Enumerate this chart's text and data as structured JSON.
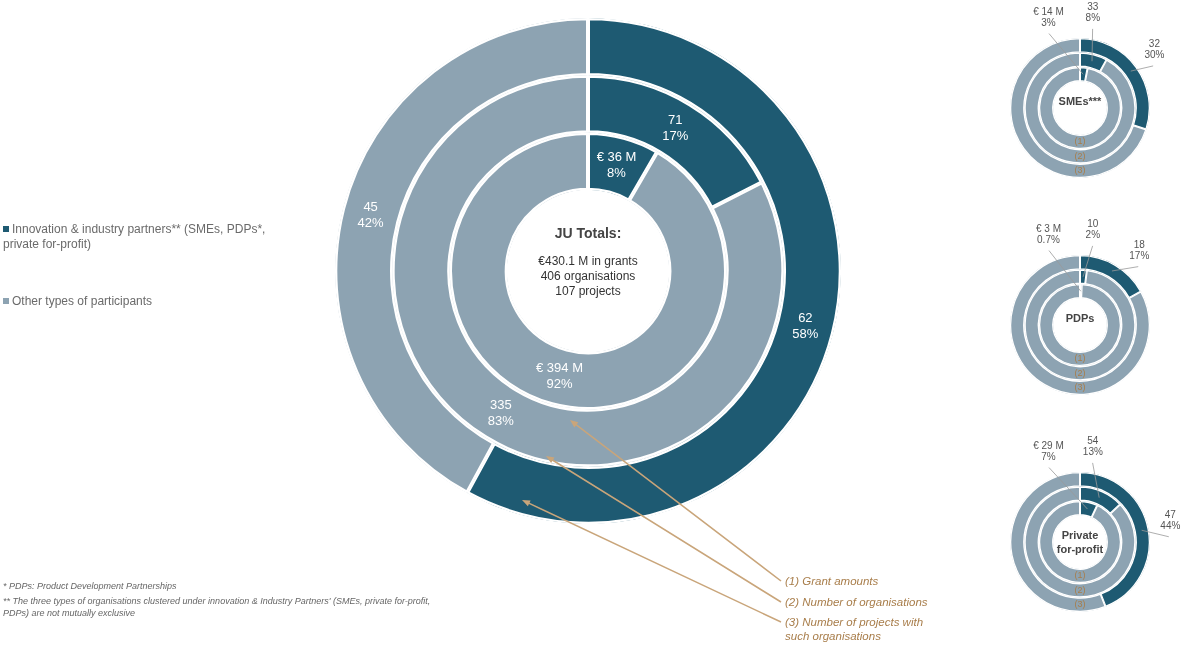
{
  "chart_data": [
    {
      "type": "donut",
      "title": "JU Totals:",
      "subtitle": "€430.1 M in grants\n406 organisations\n107 projects",
      "categories": [
        "Innovation & industry partners** (SMEs, PDPs*, private for-profit)",
        "Other types of participants"
      ],
      "colors": [
        "#1e5a72",
        "#8da3b2"
      ],
      "legend": "left",
      "series": [
        {
          "values": [
            36,
            394
          ],
          "value_labels": [
            "€ 36 M\n8%",
            "€ 394 M\n92%"
          ]
        },
        {
          "values": [
            71,
            335
          ],
          "value_labels": [
            "71\n17%",
            "335\n83%"
          ]
        },
        {
          "values": [
            62,
            45
          ],
          "value_labels": [
            "62\n58%",
            "45\n42%"
          ]
        }
      ],
      "annotations": [
        "(1) Grant amounts",
        "(2) Number of organisations",
        "(3) Number of projects with such organisations",
        "* PDPs: Product Development Partnerships",
        "** The three types of organisations clustered under innovation & Industry Partners' (SMEs, private for-profit, PDPs) are not mutually exclusive"
      ]
    },
    {
      "type": "donut",
      "title": "SMEs***",
      "categories": [
        null,
        null
      ],
      "colors": [
        "#1e5a72",
        "#8da3b2"
      ],
      "series": [
        {
          "values": [
            3,
            97
          ],
          "value_labels": [
            "€ 14 M\n3%",
            null
          ]
        },
        {
          "values": [
            8,
            92
          ],
          "value_labels": [
            "33\n8%",
            null
          ]
        },
        {
          "values": [
            30,
            70
          ],
          "value_labels": [
            "32\n30%",
            null
          ]
        }
      ],
      "annotations": [
        "(1)",
        "(2)",
        "(3)"
      ]
    },
    {
      "type": "donut",
      "title": "PDPs",
      "categories": [
        null,
        null
      ],
      "colors": [
        "#1e5a72",
        "#8da3b2"
      ],
      "series": [
        {
          "values": [
            0.7,
            99.3
          ],
          "value_labels": [
            "€ 3 M\n0.7%",
            null
          ]
        },
        {
          "values": [
            2,
            98
          ],
          "value_labels": [
            "10\n2%",
            null
          ]
        },
        {
          "values": [
            17,
            83
          ],
          "value_labels": [
            "18\n17%",
            null
          ]
        }
      ],
      "annotations": [
        "(1)",
        "(2)",
        "(3)"
      ]
    },
    {
      "type": "donut",
      "title": "Private for-profit",
      "categories": [
        null,
        null
      ],
      "colors": [
        "#1e5a72",
        "#8da3b2"
      ],
      "series": [
        {
          "values": [
            7,
            93
          ],
          "value_labels": [
            "€ 29 M\n7%",
            null
          ]
        },
        {
          "values": [
            13,
            87
          ],
          "value_labels": [
            "54\n13%",
            null
          ]
        },
        {
          "values": [
            44,
            56
          ],
          "value_labels": [
            "47\n44%",
            null
          ]
        }
      ],
      "annotations": [
        "(1)",
        "(2)",
        "(3)"
      ]
    }
  ]
}
